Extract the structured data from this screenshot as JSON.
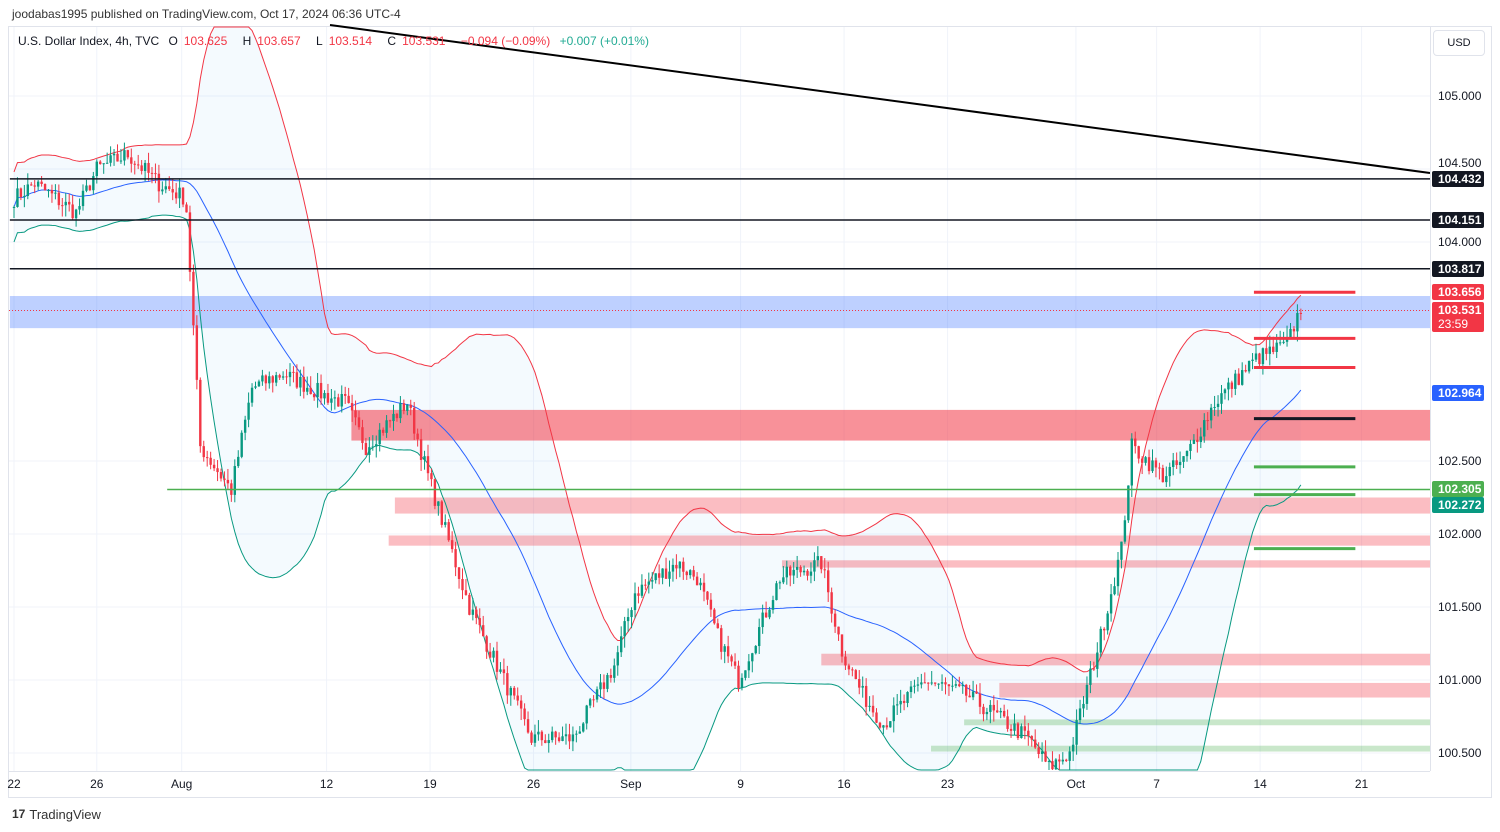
{
  "header": {
    "published": "joodabas1995 published on TradingView.com, Oct 17, 2024 06:36 UTC-4"
  },
  "legend": {
    "symbol": "U.S. Dollar Index, 4h, TVC",
    "open_l": "O",
    "open": "103.625",
    "high_l": "H",
    "high": "103.657",
    "low_l": "L",
    "low": "103.514",
    "close_l": "C",
    "close": "103.531",
    "change": "−0.094 (−0.09%)",
    "change2": "+0.007 (+0.01%)"
  },
  "currency": "USD",
  "footer": {
    "brand": "TradingView",
    "logo_icon": "tv-logo-icon"
  },
  "colors": {
    "up": "#089981",
    "down": "#f23645",
    "basis": "#2962ff",
    "upper": "#f23645",
    "lower": "#089981",
    "black": "#131722"
  },
  "chart_data": {
    "type": "candlestick",
    "title": "U.S. Dollar Index, 4h, TVC",
    "price_ticks": [
      "105.000",
      "104.500",
      "104.000",
      "102.500",
      "102.000",
      "101.500",
      "101.000",
      "100.500"
    ],
    "price_tick_values": [
      105,
      104.5,
      104,
      102.5,
      102,
      101.5,
      101,
      100.5
    ],
    "time_ticks": [
      {
        "label": "22",
        "day": 0
      },
      {
        "label": "26",
        "day": 4
      },
      {
        "label": "Aug",
        "day": 8.1
      },
      {
        "label": "12",
        "day": 15.1
      },
      {
        "label": "19",
        "day": 20.1
      },
      {
        "label": "26",
        "day": 25.1
      },
      {
        "label": "Sep",
        "day": 29.8
      },
      {
        "label": "9",
        "day": 35.1
      },
      {
        "label": "16",
        "day": 40.1
      },
      {
        "label": "23",
        "day": 45.1
      },
      {
        "label": "Oct",
        "day": 51.3
      },
      {
        "label": "7",
        "day": 55.2
      },
      {
        "label": "14",
        "day": 60.2
      },
      {
        "label": "21",
        "day": 65.1
      }
    ],
    "price_path": [
      [
        0,
        104.3
      ],
      [
        1,
        104.4
      ],
      [
        3,
        104.2
      ],
      [
        4,
        104.5
      ],
      [
        5.5,
        104.6
      ],
      [
        7,
        104.4
      ],
      [
        8.3,
        104.3
      ],
      [
        9,
        102.6
      ],
      [
        10.5,
        102.3
      ],
      [
        11.5,
        103.0
      ],
      [
        13,
        103.1
      ],
      [
        15,
        102.95
      ],
      [
        16,
        102.9
      ],
      [
        17,
        102.6
      ],
      [
        19,
        102.9
      ],
      [
        20,
        102.4
      ],
      [
        22,
        101.5
      ],
      [
        23,
        101.2
      ],
      [
        25,
        100.6
      ],
      [
        27,
        100.6
      ],
      [
        29,
        101.1
      ],
      [
        30,
        101.6
      ],
      [
        32,
        101.8
      ],
      [
        33,
        101.7
      ],
      [
        34,
        101.3
      ],
      [
        35,
        101.0
      ],
      [
        37,
        101.7
      ],
      [
        39,
        101.8
      ],
      [
        40,
        101.2
      ],
      [
        41,
        100.9
      ],
      [
        42,
        100.7
      ],
      [
        44,
        101.0
      ],
      [
        46,
        100.9
      ],
      [
        48,
        100.7
      ],
      [
        49,
        100.6
      ],
      [
        50,
        100.4
      ],
      [
        51,
        100.5
      ],
      [
        52.5,
        101.3
      ],
      [
        53.5,
        101.9
      ],
      [
        54,
        102.6
      ],
      [
        55.5,
        102.4
      ],
      [
        56.5,
        102.5
      ],
      [
        58,
        102.9
      ],
      [
        60,
        103.2
      ],
      [
        61.5,
        103.3
      ],
      [
        62.3,
        103.6
      ]
    ],
    "horizontal_levels": [
      {
        "price": 104.432,
        "label": "104.432",
        "color": "#131722",
        "from_day": -0.2
      },
      {
        "price": 104.151,
        "label": "104.151",
        "color": "#131722",
        "from_day": -0.2
      },
      {
        "price": 103.817,
        "label": "103.817",
        "color": "#131722",
        "from_day": -0.2
      },
      {
        "price": 102.305,
        "label": "102.305",
        "color": "#4caf50",
        "from_day": 7.4
      }
    ],
    "axis_labels": [
      {
        "label": "103.656",
        "price": 103.656,
        "color": "#f23645"
      },
      {
        "label": "103.531",
        "sub": "23:59",
        "price": 103.531,
        "color": "#f23645"
      },
      {
        "label": "102.964",
        "price": 102.964,
        "color": "#2962ff"
      },
      {
        "label": "102.272",
        "price": 102.272,
        "color": "#089981"
      }
    ],
    "zones": [
      {
        "from_day": -0.2,
        "top": 103.63,
        "bottom": 103.41,
        "color": "rgba(41,98,255,0.3)"
      },
      {
        "from_day": 16.3,
        "top": 102.85,
        "bottom": 102.64,
        "color": "rgba(242,54,69,0.55)"
      },
      {
        "from_day": 18.4,
        "top": 102.25,
        "bottom": 102.14,
        "color": "rgba(242,54,69,0.33)"
      },
      {
        "from_day": 18.1,
        "top": 101.99,
        "bottom": 101.92,
        "color": "rgba(242,54,69,0.33)"
      },
      {
        "from_day": 37.1,
        "top": 101.82,
        "bottom": 101.77,
        "color": "rgba(242,54,69,0.33)"
      },
      {
        "from_day": 39,
        "top": 101.18,
        "bottom": 101.1,
        "color": "rgba(242,54,69,0.33)"
      },
      {
        "from_day": 47.6,
        "top": 100.98,
        "bottom": 100.88,
        "color": "rgba(242,54,69,0.33)"
      },
      {
        "from_day": 45.9,
        "top": 100.73,
        "bottom": 100.69,
        "color": "rgba(76,175,80,0.3)"
      },
      {
        "from_day": 44.3,
        "top": 100.55,
        "bottom": 100.51,
        "color": "rgba(76,175,80,0.3)"
      }
    ],
    "short_levels": [
      {
        "price": 103.656,
        "color": "#f23645"
      },
      {
        "price": 103.34,
        "color": "#f23645"
      },
      {
        "price": 103.14,
        "color": "#f23645"
      },
      {
        "price": 102.79,
        "color": "#131722"
      },
      {
        "price": 102.46,
        "color": "#4caf50"
      },
      {
        "price": 102.27,
        "color": "#4caf50"
      },
      {
        "price": 101.9,
        "color": "#4caf50"
      }
    ],
    "short_levels_days": [
      59.9,
      64.8
    ],
    "indicator": "Bollinger Bands"
  }
}
